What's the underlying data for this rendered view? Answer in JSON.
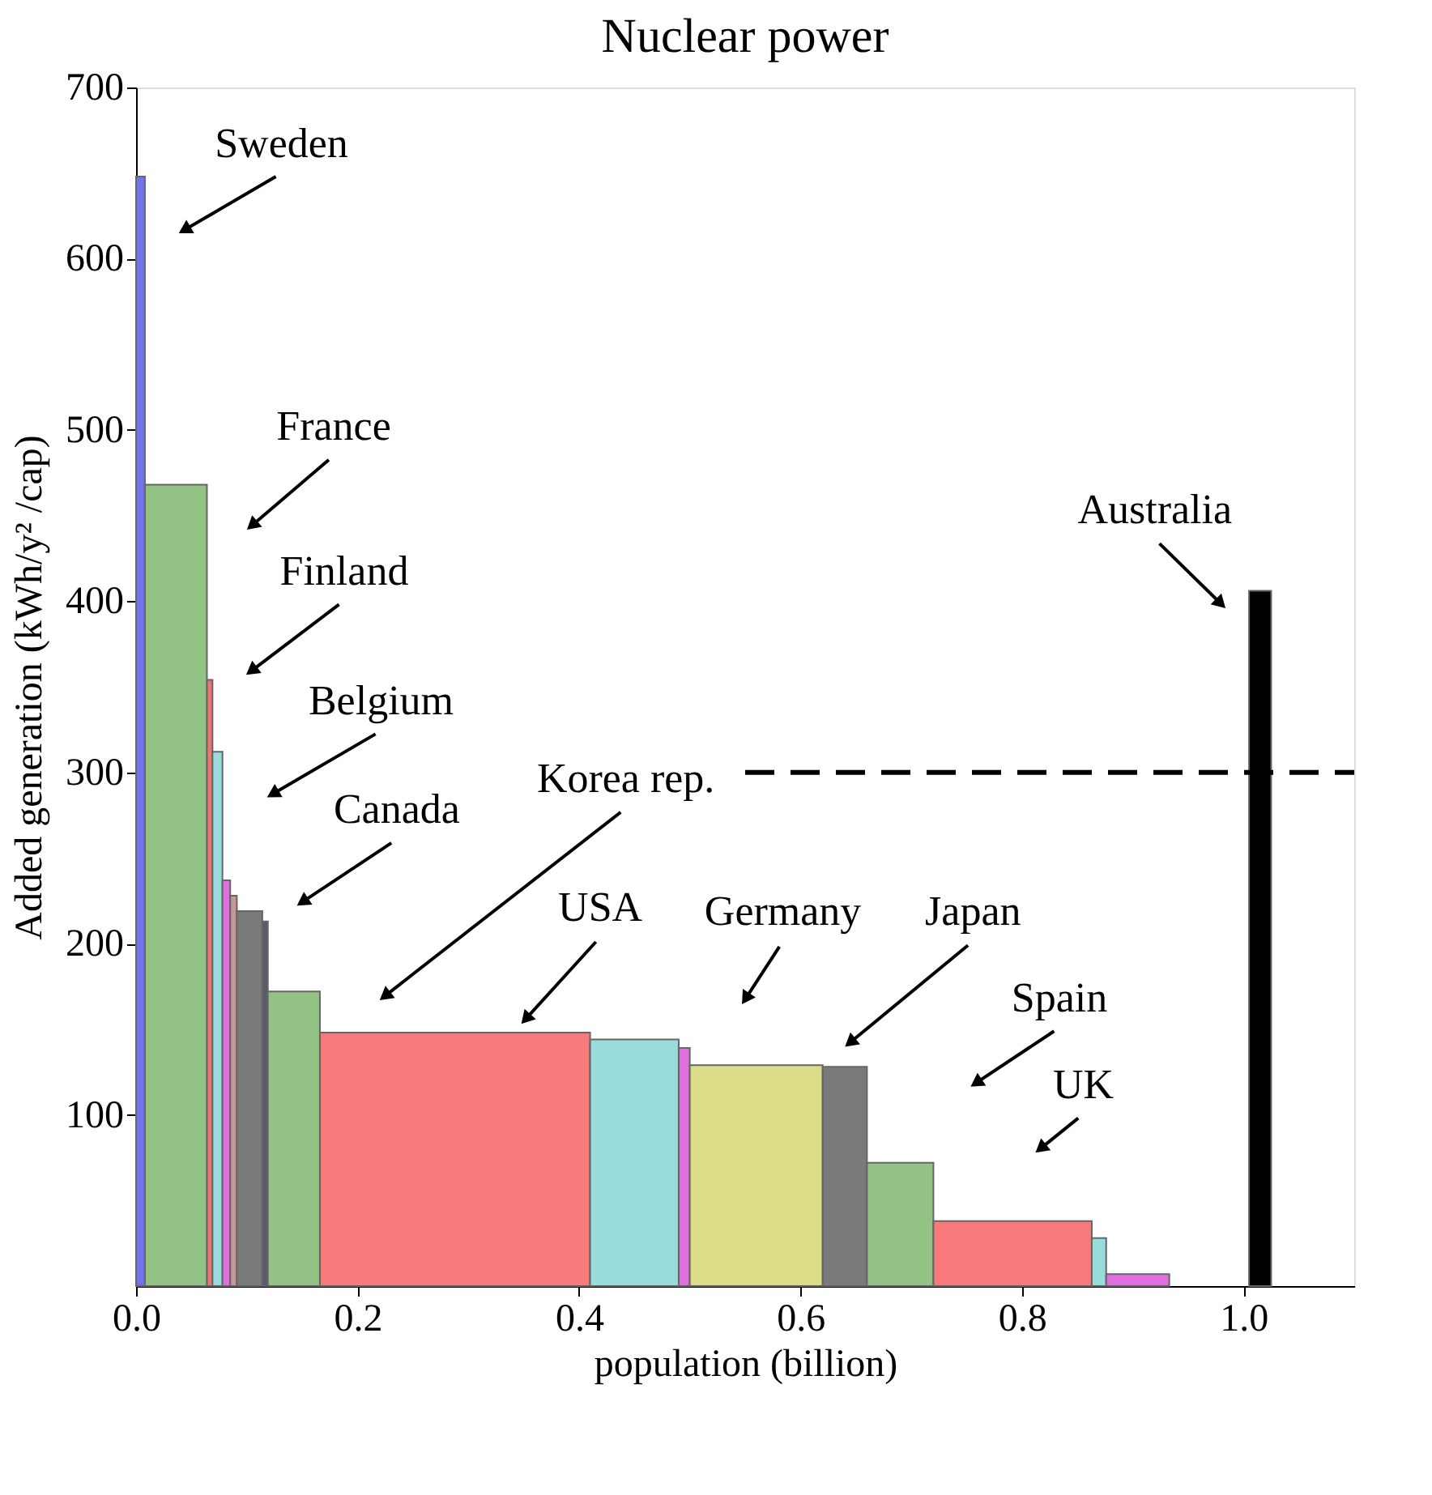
{
  "chart_data": {
    "type": "histogram",
    "title": "Nuclear power",
    "xlabel": "population (billion)",
    "ylabel": "Added generation (kWh/y² /cap)",
    "bins": [
      0,
      0.008,
      0.064,
      0.069,
      0.078,
      0.085,
      0.091,
      0.114,
      0.119,
      0.166,
      0.41,
      0.49,
      0.5,
      0.62,
      0.66,
      0.72,
      0.863,
      0.876,
      0.933,
      1.005,
      1.025
    ],
    "values": [
      648,
      468,
      354,
      312,
      237,
      228,
      219,
      213,
      172,
      148,
      144,
      139,
      129,
      128,
      72,
      38,
      28,
      7,
      null,
      406
    ],
    "colors": [
      "#7272ee",
      "#92c284",
      "#f07474",
      "#9adcdc",
      "#e070e0",
      "#c89898",
      "#7a7a7a",
      "#5a5a6a",
      "#92c284",
      "#f87a7a",
      "#9adcdc",
      "#e070e0",
      "#dcdc88",
      "#7a7a7a",
      "#92c284",
      "#f87a7a",
      "#9adcdc",
      "#e070e0",
      null,
      "#000000"
    ],
    "series": [
      {
        "type": "line",
        "x": [
          0.55,
          1.1
        ],
        "values": [
          300,
          300
        ],
        "color": "#000000",
        "line_style": "dashed"
      }
    ],
    "xlim": [
      0,
      1.1
    ],
    "xticks": [
      {
        "value": 0,
        "label": "0.0"
      },
      0.2,
      0.4,
      0.6,
      0.8,
      {
        "value": 1,
        "label": "1.0"
      }
    ],
    "ylim": [
      0,
      700
    ],
    "yticks": [
      100,
      200,
      300,
      400,
      500,
      600,
      700
    ],
    "grid": false,
    "annotations": [
      {
        "text": "Sweden",
        "x": 0.004,
        "y": 648
      },
      {
        "text": "France",
        "x": 0.06,
        "y": 468
      },
      {
        "text": "Finland",
        "x": 0.0665,
        "y": 354
      },
      {
        "text": "Belgium",
        "x": 0.0735,
        "y": 312
      },
      "Canada",
      "Korea rep.",
      {
        "text": "USA",
        "x": 0.346,
        "y": 148
      },
      "Germany",
      "Japan",
      "Spain",
      {
        "text": "UK",
        "x": 0.81,
        "y": 38
      },
      {
        "text": "Australia",
        "x": 1.015,
        "y": 406
      }
    ]
  }
}
